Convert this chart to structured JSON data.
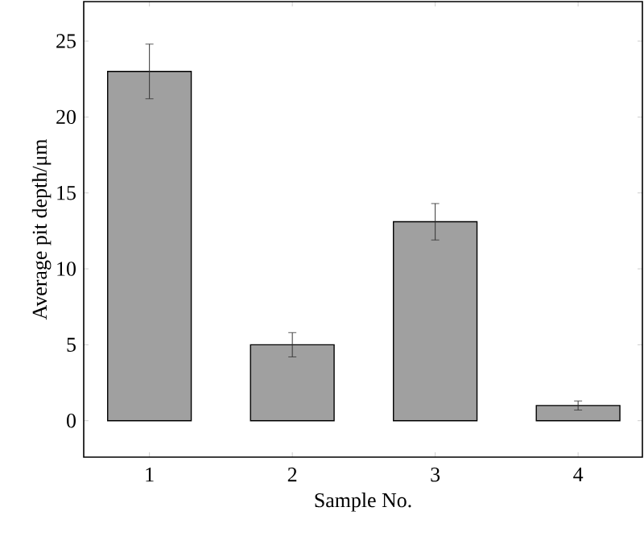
{
  "chart_data": {
    "type": "bar",
    "xlabel": "Sample No.",
    "ylabel": "Average pit depth/μm",
    "categories": [
      "1",
      "2",
      "3",
      "4"
    ],
    "values": [
      23,
      5,
      13.1,
      1
    ],
    "errors": [
      1.8,
      0.8,
      1.2,
      0.3
    ],
    "color": "#a0a0a0",
    "ylim": [
      -2.4,
      27.6
    ],
    "yticks": [
      0,
      5,
      10,
      15,
      20,
      25
    ],
    "grid": false
  }
}
